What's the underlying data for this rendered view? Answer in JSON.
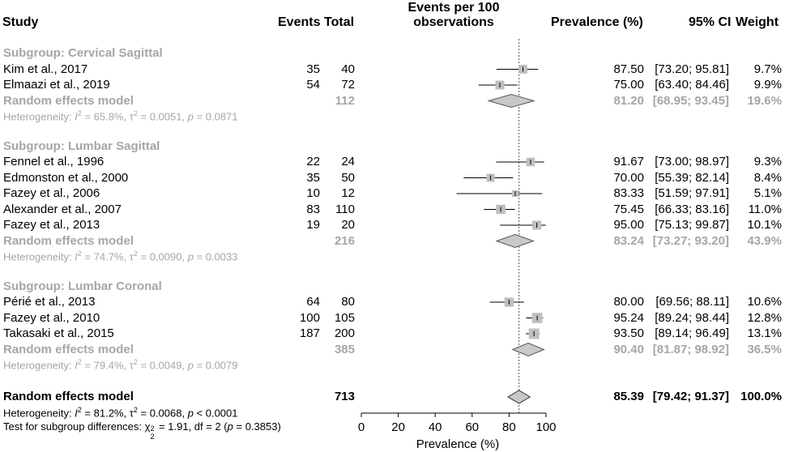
{
  "header": {
    "study": "Study",
    "events": "Events",
    "total": "Total",
    "plot_title_line1": "Events per 100",
    "plot_title_line2": "observations",
    "prevalence": "Prevalence (%)",
    "ci": "95% CI",
    "weight": "Weight"
  },
  "colors": {
    "grey_text": "#a6a6a6",
    "box": "#bfbfbf",
    "diamond": "#c8c8c8"
  },
  "chart_data": {
    "type": "forest",
    "xlabel": "Prevalence (%)",
    "xlim": [
      0,
      100
    ],
    "ticks": [
      "0",
      "20",
      "40",
      "60",
      "80",
      "100"
    ],
    "tick_values": [
      0,
      20,
      40,
      60,
      80,
      100
    ],
    "reference_line": 85.39,
    "subgroups": [
      {
        "label": "Subgroup: Cervical Sagittal",
        "studies": [
          {
            "study": "Kim et al., 2017",
            "events": "35",
            "total": "40",
            "prevalence": "87.50",
            "ci": "[73.20; 95.81]",
            "weight": "9.7%",
            "est": 87.5,
            "lower": 73.2,
            "upper": 95.81,
            "w": 9.7
          },
          {
            "study": "Elmaazi et al., 2019",
            "events": "54",
            "total": "72",
            "prevalence": "75.00",
            "ci": "[63.40; 84.46]",
            "weight": "9.9%",
            "est": 75.0,
            "lower": 63.4,
            "upper": 84.46,
            "w": 9.9
          }
        ],
        "model": {
          "label": "Random effects model",
          "total": "112",
          "prevalence": "81.20",
          "ci": "[68.95; 93.45]",
          "weight": "19.6%",
          "est": 81.2,
          "lower": 68.95,
          "upper": 93.45
        },
        "heterogeneity": {
          "prefix": "Heterogeneity: ",
          "i2": "65.8%",
          "tau2": "0.0051",
          "p_sign": " = ",
          "p": "0.0871"
        }
      },
      {
        "label": "Subgroup: Lumbar Sagittal",
        "studies": [
          {
            "study": "Fennel et al., 1996",
            "events": "22",
            "total": "24",
            "prevalence": "91.67",
            "ci": "[73.00; 98.97]",
            "weight": "9.3%",
            "est": 91.67,
            "lower": 73.0,
            "upper": 98.97,
            "w": 9.3
          },
          {
            "study": "Edmonston et al., 2000",
            "events": "35",
            "total": "50",
            "prevalence": "70.00",
            "ci": "[55.39; 82.14]",
            "weight": "8.4%",
            "est": 70.0,
            "lower": 55.39,
            "upper": 82.14,
            "w": 8.4
          },
          {
            "study": "Fazey et al., 2006",
            "events": "10",
            "total": "12",
            "prevalence": "83.33",
            "ci": "[51.59; 97.91]",
            "weight": "5.1%",
            "est": 83.33,
            "lower": 51.59,
            "upper": 97.91,
            "w": 5.1
          },
          {
            "study": "Alexander et al., 2007",
            "events": "83",
            "total": "110",
            "prevalence": "75.45",
            "ci": "[66.33; 83.16]",
            "weight": "11.0%",
            "est": 75.45,
            "lower": 66.33,
            "upper": 83.16,
            "w": 11.0
          },
          {
            "study": "Fazey et al., 2013",
            "events": "19",
            "total": "20",
            "prevalence": "95.00",
            "ci": "[75.13; 99.87]",
            "weight": "10.1%",
            "est": 95.0,
            "lower": 75.13,
            "upper": 99.87,
            "w": 10.1
          }
        ],
        "model": {
          "label": "Random effects model",
          "total": "216",
          "prevalence": "83.24",
          "ci": "[73.27; 93.20]",
          "weight": "43.9%",
          "est": 83.24,
          "lower": 73.27,
          "upper": 93.2
        },
        "heterogeneity": {
          "prefix": "Heterogeneity: ",
          "i2": "74.7%",
          "tau2": "0.0090",
          "p_sign": " = ",
          "p": "0.0033"
        }
      },
      {
        "label": "Subgroup: Lumbar Coronal",
        "studies": [
          {
            "study": "Périé et al., 2013",
            "events": "64",
            "total": "80",
            "prevalence": "80.00",
            "ci": "[69.56; 88.11]",
            "weight": "10.6%",
            "est": 80.0,
            "lower": 69.56,
            "upper": 88.11,
            "w": 10.6
          },
          {
            "study": "Fazey et al., 2010",
            "events": "100",
            "total": "105",
            "prevalence": "95.24",
            "ci": "[89.24; 98.44]",
            "weight": "12.8%",
            "est": 95.24,
            "lower": 89.24,
            "upper": 98.44,
            "w": 12.8
          },
          {
            "study": "Takasaki et al., 2015",
            "events": "187",
            "total": "200",
            "prevalence": "93.50",
            "ci": "[89.14; 96.49]",
            "weight": "13.1%",
            "est": 93.5,
            "lower": 89.14,
            "upper": 96.49,
            "w": 13.1
          }
        ],
        "model": {
          "label": "Random effects model",
          "total": "385",
          "prevalence": "90.40",
          "ci": "[81.87; 98.92]",
          "weight": "36.5%",
          "est": 90.4,
          "lower": 81.87,
          "upper": 98.92
        },
        "heterogeneity": {
          "prefix": "Heterogeneity: ",
          "i2": "79.4%",
          "tau2": "0.0049",
          "p_sign": " = ",
          "p": "0.0079"
        }
      }
    ],
    "overall": {
      "label": "Random effects model",
      "total": "713",
      "prevalence": "85.39",
      "ci": "[79.42; 91.37]",
      "weight": "100.0%",
      "est": 85.39,
      "lower": 79.42,
      "upper": 91.37,
      "heterogeneity": {
        "prefix": "Heterogeneity: ",
        "i2": "81.2%",
        "tau2": "0.0068",
        "p_sign": " < ",
        "p": "0.0001"
      },
      "subgroup_test": {
        "prefix": "Test for subgroup differences: ",
        "chi": "χ",
        "sub": "2",
        "sup": "2",
        "value": " = 1.91, df = 2 (",
        "p_label": "p",
        "p_value": " = 0.3853)"
      }
    }
  }
}
